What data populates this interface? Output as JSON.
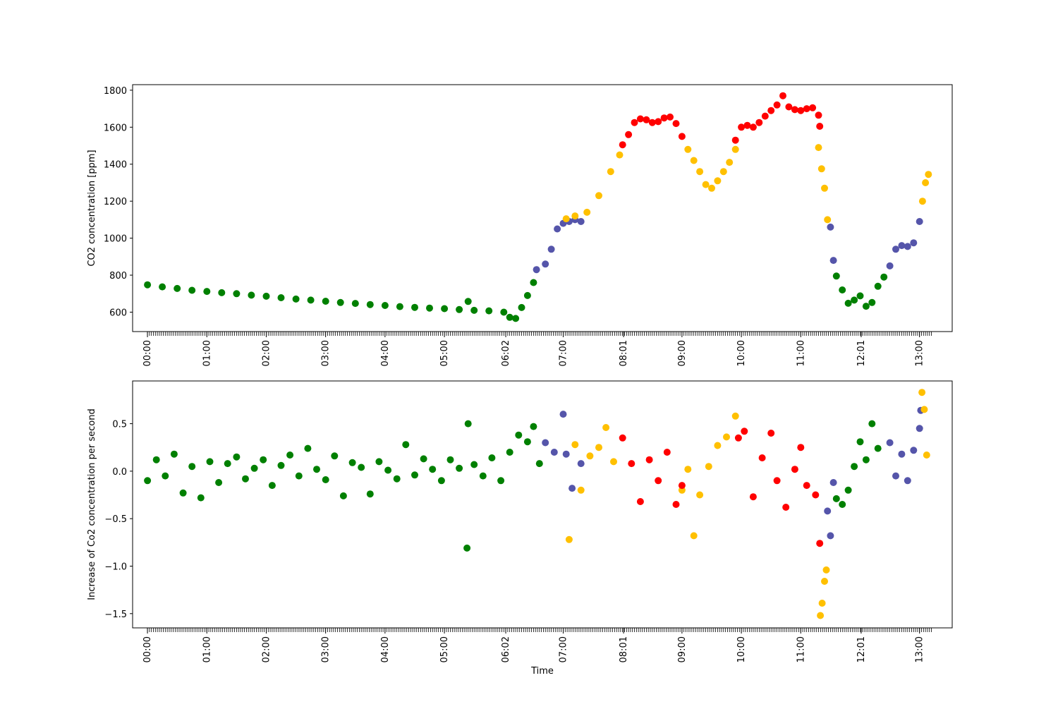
{
  "chart_data": [
    {
      "type": "scatter",
      "title": "",
      "xlabel": "",
      "ylabel": "CO2 concentration [ppm]",
      "xlim": [
        -0.25,
        13.55
      ],
      "ylim": [
        495,
        1830
      ],
      "yticks": [
        600,
        800,
        1000,
        1200,
        1400,
        1600,
        1800
      ],
      "xtick_positions": [
        0,
        1,
        2,
        3,
        4,
        5,
        6.033,
        7,
        8.017,
        9,
        10,
        11,
        12.017,
        13
      ],
      "xtick_labels": [
        "00:00",
        "01:00",
        "02:00",
        "03:00",
        "04:00",
        "05:00",
        "06:02",
        "07:00",
        "08:01",
        "09:00",
        "10:00",
        "11:00",
        "12:01",
        "13:00"
      ],
      "grid": false,
      "legend": "none",
      "colors": {
        "green": "#008000",
        "blue": "#5555aa",
        "yellow": "#ffc000",
        "red": "#ff0000"
      },
      "x_unit": "hours since 00:00",
      "series": [
        {
          "color": "green",
          "x": [
            0.0,
            0.25,
            0.5,
            0.75,
            1.0,
            1.25,
            1.5,
            1.75,
            2.0,
            2.25,
            2.5,
            2.75,
            3.0,
            3.25,
            3.5,
            3.75,
            4.0,
            4.25,
            4.5,
            4.75,
            5.0,
            5.25,
            5.4,
            5.5,
            5.75,
            6.0,
            6.1,
            6.2,
            6.3,
            6.4,
            6.5,
            11.6,
            11.7,
            11.8,
            11.9,
            12.0,
            12.1,
            12.2,
            12.3,
            12.4
          ],
          "values": [
            748,
            737,
            728,
            718,
            712,
            705,
            700,
            692,
            686,
            678,
            671,
            665,
            659,
            652,
            647,
            641,
            636,
            630,
            626,
            622,
            619,
            614,
            658,
            610,
            607,
            600,
            572,
            566,
            625,
            690,
            760,
            795,
            720,
            648,
            665,
            688,
            632,
            652,
            740,
            790
          ]
        },
        {
          "color": "blue",
          "x": [
            6.55,
            6.7,
            6.8,
            6.9,
            7.0,
            7.1,
            7.2,
            7.3,
            11.5,
            11.55,
            12.5,
            12.6,
            12.7,
            12.8,
            12.9,
            13.0
          ],
          "values": [
            830,
            860,
            940,
            1050,
            1080,
            1090,
            1100,
            1090,
            1060,
            880,
            850,
            940,
            960,
            955,
            975,
            1090
          ]
        },
        {
          "color": "yellow",
          "x": [
            7.05,
            7.2,
            7.4,
            7.6,
            7.8,
            7.95,
            9.1,
            9.2,
            9.3,
            9.4,
            9.5,
            9.6,
            9.7,
            9.8,
            9.9,
            11.3,
            11.35,
            11.4,
            11.45,
            13.05,
            13.1,
            13.15
          ],
          "values": [
            1105,
            1120,
            1140,
            1230,
            1360,
            1450,
            1480,
            1420,
            1360,
            1290,
            1270,
            1310,
            1360,
            1410,
            1480,
            1490,
            1375,
            1270,
            1100,
            1200,
            1300,
            1345
          ]
        },
        {
          "color": "red",
          "x": [
            8.0,
            8.1,
            8.2,
            8.3,
            8.4,
            8.5,
            8.6,
            8.7,
            8.8,
            8.9,
            9.0,
            9.9,
            10.0,
            10.1,
            10.2,
            10.3,
            10.4,
            10.5,
            10.6,
            10.7,
            10.8,
            10.9,
            11.0,
            11.1,
            11.2,
            11.3,
            11.32
          ],
          "values": [
            1505,
            1560,
            1625,
            1645,
            1640,
            1625,
            1630,
            1650,
            1655,
            1620,
            1550,
            1530,
            1600,
            1610,
            1600,
            1625,
            1660,
            1690,
            1720,
            1770,
            1710,
            1695,
            1690,
            1700,
            1705,
            1665,
            1605
          ]
        }
      ]
    },
    {
      "type": "scatter",
      "title": "",
      "xlabel": "Time",
      "ylabel": "Increase of Co2 concentration per second",
      "xlim": [
        -0.25,
        13.55
      ],
      "ylim": [
        -1.65,
        0.95
      ],
      "yticks": [
        -1.5,
        -1.0,
        -0.5,
        0.0,
        0.5
      ],
      "ytick_labels": [
        "−1.5",
        "−1.0",
        "−0.5",
        "0.0",
        "0.5"
      ],
      "xtick_positions": [
        0,
        1,
        2,
        3,
        4,
        5,
        6.033,
        7,
        8.017,
        9,
        10,
        11,
        12.017,
        13
      ],
      "xtick_labels": [
        "00:00",
        "01:00",
        "02:00",
        "03:00",
        "04:00",
        "05:00",
        "06:02",
        "07:00",
        "08:01",
        "09:00",
        "10:00",
        "11:00",
        "12:01",
        "13:00"
      ],
      "grid": false,
      "legend": "none",
      "colors": {
        "green": "#008000",
        "blue": "#5555aa",
        "yellow": "#ffc000",
        "red": "#ff0000"
      },
      "x_unit": "hours since 00:00",
      "series": [
        {
          "color": "green",
          "x": [
            0.0,
            0.15,
            0.3,
            0.45,
            0.6,
            0.75,
            0.9,
            1.05,
            1.2,
            1.35,
            1.5,
            1.65,
            1.8,
            1.95,
            2.1,
            2.25,
            2.4,
            2.55,
            2.7,
            2.85,
            3.0,
            3.15,
            3.3,
            3.45,
            3.6,
            3.75,
            3.9,
            4.05,
            4.2,
            4.35,
            4.5,
            4.65,
            4.8,
            4.95,
            5.1,
            5.25,
            5.38,
            5.4,
            5.5,
            5.65,
            5.8,
            5.95,
            6.1,
            6.25,
            6.4,
            6.5,
            6.6,
            11.6,
            11.7,
            11.8,
            11.9,
            12.0,
            12.1,
            12.2,
            12.3
          ],
          "values": [
            -0.1,
            0.12,
            -0.05,
            0.18,
            -0.23,
            0.05,
            -0.28,
            0.1,
            -0.12,
            0.08,
            0.15,
            -0.08,
            0.03,
            0.12,
            -0.15,
            0.06,
            0.17,
            -0.05,
            0.24,
            0.02,
            -0.09,
            0.16,
            -0.26,
            0.09,
            0.04,
            -0.24,
            0.1,
            0.01,
            -0.08,
            0.28,
            -0.04,
            0.13,
            0.02,
            -0.1,
            0.12,
            0.03,
            -0.81,
            0.5,
            0.07,
            -0.05,
            0.14,
            -0.1,
            0.2,
            0.38,
            0.31,
            0.47,
            0.08,
            -0.29,
            -0.35,
            -0.2,
            0.05,
            0.31,
            0.12,
            0.5,
            0.24
          ]
        },
        {
          "color": "blue",
          "x": [
            6.7,
            6.85,
            7.0,
            7.05,
            7.15,
            7.3,
            11.45,
            11.5,
            11.55,
            12.5,
            12.6,
            12.7,
            12.8,
            12.9,
            13.0,
            13.02
          ],
          "values": [
            0.3,
            0.2,
            0.6,
            0.18,
            -0.18,
            0.08,
            -0.42,
            -0.68,
            -0.12,
            0.3,
            -0.05,
            0.18,
            -0.1,
            0.22,
            0.45,
            0.64
          ]
        },
        {
          "color": "yellow",
          "x": [
            7.1,
            7.2,
            7.3,
            7.45,
            7.6,
            7.72,
            7.85,
            9.0,
            9.1,
            9.2,
            9.3,
            9.45,
            9.6,
            9.75,
            9.9,
            11.33,
            11.36,
            11.4,
            11.43,
            13.04,
            13.08,
            13.12
          ],
          "values": [
            -0.72,
            0.28,
            -0.2,
            0.16,
            0.25,
            0.46,
            0.1,
            -0.2,
            0.02,
            -0.68,
            -0.25,
            0.05,
            0.27,
            0.36,
            0.58,
            -1.52,
            -1.39,
            -1.16,
            -1.04,
            0.83,
            0.65,
            0.17
          ]
        },
        {
          "color": "red",
          "x": [
            8.0,
            8.15,
            8.3,
            8.45,
            8.6,
            8.75,
            8.9,
            9.0,
            9.95,
            10.05,
            10.2,
            10.35,
            10.5,
            10.6,
            10.75,
            10.9,
            11.0,
            11.1,
            11.25,
            11.32
          ],
          "values": [
            0.35,
            0.08,
            -0.32,
            0.12,
            -0.1,
            0.2,
            -0.35,
            -0.15,
            0.35,
            0.42,
            -0.27,
            0.14,
            0.4,
            -0.1,
            -0.38,
            0.02,
            0.25,
            -0.15,
            -0.25,
            -0.76
          ]
        }
      ]
    }
  ]
}
